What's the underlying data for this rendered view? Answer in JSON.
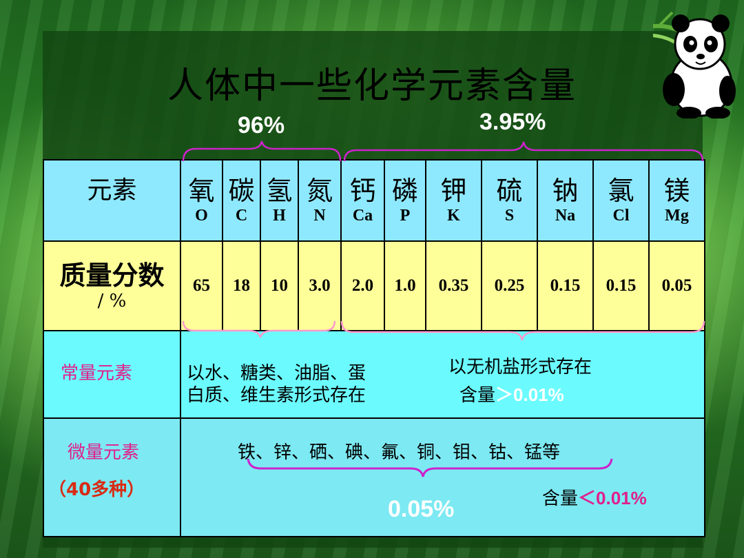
{
  "title": "人体中一些化学元素含量",
  "labels": {
    "group_major_pct": "96%",
    "group_minor_pct": "3.95%",
    "trace_total_pct": "0.05%"
  },
  "table": {
    "header_label": "元素",
    "elements": [
      {
        "zh": "氧",
        "sym": "O"
      },
      {
        "zh": "碳",
        "sym": "C"
      },
      {
        "zh": "氢",
        "sym": "H"
      },
      {
        "zh": "氮",
        "sym": "N"
      },
      {
        "zh": "钙",
        "sym": "Ca"
      },
      {
        "zh": "磷",
        "sym": "P"
      },
      {
        "zh": "钾",
        "sym": "K"
      },
      {
        "zh": "硫",
        "sym": "S"
      },
      {
        "zh": "钠",
        "sym": "Na"
      },
      {
        "zh": "氯",
        "sym": "Cl"
      },
      {
        "zh": "镁",
        "sym": "Mg"
      }
    ],
    "mass_label": "质量分数",
    "mass_unit": "/ %",
    "values": [
      "65",
      "18",
      "10",
      "3.0",
      "2.0",
      "1.0",
      "0.35",
      "0.25",
      "0.15",
      "0.15",
      "0.05"
    ],
    "macro": {
      "label": "常量元素",
      "organic_line1": "以水、糖类、油脂、蛋",
      "organic_line2": "白质、维生素形式存在",
      "inorganic_line1": "以无机盐形式存在",
      "inorganic_prefix": "含量",
      "inorganic_value": "＞0.01%"
    },
    "trace": {
      "label": "微量元素",
      "count": "（40多种）",
      "list": "铁、锌、硒、碘、氟、铜、钼、钴、锰等",
      "content_prefix": "含量",
      "content_value": "＜0.01%"
    }
  },
  "colors": {
    "header_bg": "#8ee9ff",
    "value_bg": "#ffff99",
    "macro_bg": "#6bfbff",
    "trace_bg": "#7de9f2",
    "brace": "#cc22cc",
    "label_pink": "#e01f8a",
    "label_red": "#d92b14"
  },
  "icons": [
    "panda-icon",
    "bamboo-leaf-icon"
  ]
}
